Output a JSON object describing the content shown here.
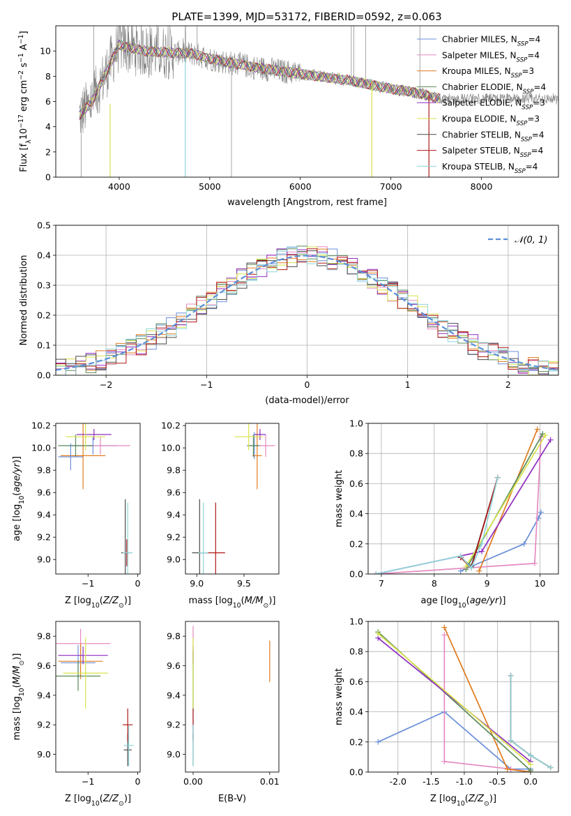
{
  "title": "PLATE=1399, MJD=53172, FIBERID=0592, z=0.063",
  "colors": {
    "Chabrier_MILES": "#6a8fd8",
    "Salpeter_MILES": "#e58ac0",
    "Kroupa_MILES": "#e07b1e",
    "Chabrier_ELODIE": "#5a8a5a",
    "Salpeter_ELODIE": "#8e2dc0",
    "Kroupa_ELODIE": "#d8e34a",
    "Chabrier_STELIB": "#4a4a4a",
    "Salpeter_STELIB": "#b01818",
    "Kroupa_STELIB": "#8fd5d8",
    "data": "#808080",
    "grid": "#b0b0b0"
  },
  "chart_data": [
    {
      "id": "spectrum",
      "type": "line",
      "xlabel": "wavelength [Angstrom, rest frame]",
      "ylabel": "Flux [f_λ 10^-17 erg cm^-2 s^-1 A^-1]",
      "xlim": [
        3300,
        8850
      ],
      "ylim": [
        0,
        12
      ],
      "xticks": [
        4000,
        5000,
        6000,
        7000,
        8000
      ],
      "yticks": [
        0,
        2,
        4,
        6,
        8,
        10
      ],
      "grid": false,
      "legend_position": "top-right",
      "model_continuum": {
        "x": [
          3550,
          3700,
          3850,
          4000,
          4100,
          4300,
          4500,
          4800,
          5000,
          5200,
          5500,
          5800,
          6000,
          6200,
          6500,
          6800,
          7000,
          7200,
          7400,
          7550
        ],
        "y": [
          4.8,
          6.0,
          8.2,
          10.5,
          10.3,
          10.0,
          9.9,
          9.8,
          9.4,
          9.1,
          8.7,
          8.4,
          8.2,
          8.0,
          7.7,
          7.3,
          7.0,
          6.8,
          6.5,
          6.2
        ]
      },
      "series": [
        {
          "name": "Chabrier MILES",
          "nssp": "N_SSP=4",
          "key": "Chabrier_MILES"
        },
        {
          "name": "Salpeter MILES",
          "nssp": "N_SSP=4",
          "key": "Salpeter_MILES"
        },
        {
          "name": "Kroupa MILES",
          "nssp": "N_SSP=3",
          "key": "Kroupa_MILES"
        },
        {
          "name": "Chabrier ELODIE",
          "nssp": "N_SSP=4",
          "key": "Chabrier_ELODIE"
        },
        {
          "name": "Salpeter ELODIE",
          "nssp": "N_SSP=3",
          "key": "Salpeter_ELODIE"
        },
        {
          "name": "Kroupa ELODIE",
          "nssp": "N_SSP=3",
          "key": "Kroupa_ELODIE"
        },
        {
          "name": "Chabrier STELIB",
          "nssp": "N_SSP=4",
          "key": "Chabrier_STELIB"
        },
        {
          "name": "Salpeter STELIB",
          "nssp": "N_SSP=4",
          "key": "Salpeter_STELIB"
        },
        {
          "name": "Kroupa STELIB",
          "nssp": "N_SSP=4",
          "key": "Kroupa_STELIB"
        }
      ],
      "dropouts": [
        {
          "key": "Kroupa_ELODIE",
          "x": 3900,
          "ystart": 5.8
        },
        {
          "key": "Kroupa_STELIB",
          "x": 4730,
          "ystart": 9.6
        },
        {
          "key": "Kroupa_ELODIE",
          "x": 6790,
          "ystart": 7.6
        },
        {
          "key": "Salpeter_STELIB",
          "x": 7420,
          "ystart": 6.5
        }
      ]
    },
    {
      "id": "residuals",
      "type": "histogram",
      "xlabel": "(data-model)/error",
      "ylabel": "Normed distribution",
      "xlim": [
        -2.5,
        2.5
      ],
      "ylim": [
        0,
        0.5
      ],
      "xticks": [
        -2,
        -1,
        0,
        1,
        2
      ],
      "yticks": [
        0.0,
        0.1,
        0.2,
        0.3,
        0.4,
        0.5
      ],
      "grid": true,
      "bin_width": 0.1,
      "reference": {
        "name": "𝒩(0, 1)",
        "mean": 0,
        "sigma": 1,
        "style": "dashed",
        "color": "#5b8fd8"
      },
      "legend_position": "top-right"
    },
    {
      "id": "age_vs_Z",
      "type": "scatter",
      "xlabel": "Z [log10(Z/Z_sun)]",
      "ylabel": "age [log10(age/yr)]",
      "xlim": [
        -1.65,
        0.05
      ],
      "ylim": [
        8.87,
        10.22
      ],
      "xticks": [
        -1,
        0
      ],
      "yticks": [
        9.0,
        9.2,
        9.4,
        9.6,
        9.8,
        10.0,
        10.2
      ],
      "points": [
        {
          "key": "Chabrier_MILES",
          "x": -0.9,
          "y": 10.02,
          "xerr": 0.5,
          "yerr": 0.08
        },
        {
          "key": "Salpeter_MILES",
          "x": -0.75,
          "y": 10.02,
          "xerr": 0.6,
          "yerr": 0.08
        },
        {
          "key": "Kroupa_MILES",
          "x": -1.1,
          "y": 9.93,
          "xerr": 0.45,
          "yerr": 0.3
        },
        {
          "key": "Chabrier_ELODIE",
          "x": -1.25,
          "y": 10.02,
          "xerr": 0.35,
          "yerr": 0.1
        },
        {
          "key": "Salpeter_ELODIE",
          "x": -0.88,
          "y": 10.12,
          "xerr": 0.35,
          "yerr": 0.05
        },
        {
          "key": "Kroupa_ELODIE",
          "x": -1.05,
          "y": 10.1,
          "xerr": 0.4,
          "yerr": 0.12
        },
        {
          "key": "Chabrier_STELIB",
          "x": -0.25,
          "y": 9.06,
          "xerr": 0.08,
          "yerr": 0.48
        },
        {
          "key": "Salpeter_STELIB",
          "x": -0.22,
          "y": 9.06,
          "xerr": 0.06,
          "yerr": 0.12
        },
        {
          "key": "Kroupa_STELIB",
          "x": -0.2,
          "y": 9.06,
          "xerr": 0.1,
          "yerr": 0.45
        },
        {
          "key": "Chabrier_MILES",
          "x": -1.35,
          "y": 9.92,
          "xerr": 0.25,
          "yerr": 0.12
        }
      ]
    },
    {
      "id": "age_vs_mass",
      "type": "scatter",
      "xlabel": "mass [log10(M/M_sun)]",
      "ylabel": "",
      "xlim": [
        8.88,
        9.87
      ],
      "ylim": [
        8.87,
        10.22
      ],
      "xticks": [
        9.0,
        9.5
      ],
      "yticks": [
        9.0,
        9.2,
        9.4,
        9.6,
        9.8,
        10.0,
        10.2
      ],
      "points": [
        {
          "key": "Chabrier_MILES",
          "x": 9.61,
          "y": 10.02,
          "xerr": 0.08,
          "yerr": 0.12
        },
        {
          "key": "Salpeter_MILES",
          "x": 9.73,
          "y": 10.02,
          "xerr": 0.1,
          "yerr": 0.1
        },
        {
          "key": "Kroupa_MILES",
          "x": 9.64,
          "y": 9.93,
          "xerr": 0.05,
          "yerr": 0.3
        },
        {
          "key": "Chabrier_ELODIE",
          "x": 9.6,
          "y": 10.02,
          "xerr": 0.06,
          "yerr": 0.1
        },
        {
          "key": "Salpeter_ELODIE",
          "x": 9.67,
          "y": 10.12,
          "xerr": 0.06,
          "yerr": 0.05
        },
        {
          "key": "Kroupa_ELODIE",
          "x": 9.55,
          "y": 10.1,
          "xerr": 0.15,
          "yerr": 0.12
        },
        {
          "key": "Chabrier_STELIB",
          "x": 9.03,
          "y": 9.06,
          "xerr": 0.08,
          "yerr": 0.48
        },
        {
          "key": "Salpeter_STELIB",
          "x": 9.2,
          "y": 9.06,
          "xerr": 0.1,
          "yerr": 0.45
        },
        {
          "key": "Kroupa_STELIB",
          "x": 9.07,
          "y": 9.06,
          "xerr": 0.05,
          "yerr": 0.45
        }
      ]
    },
    {
      "id": "weight_vs_age",
      "type": "line",
      "xlabel": "age [log10(age/yr)]",
      "ylabel": "mass weight",
      "xlim": [
        6.75,
        10.35
      ],
      "ylim": [
        0,
        1.0
      ],
      "xticks": [
        7,
        8,
        9,
        10
      ],
      "yticks": [
        0.0,
        0.2,
        0.4,
        0.6,
        0.8,
        1.0
      ],
      "grid": true,
      "series": [
        {
          "key": "Chabrier_MILES",
          "x": [
            8.5,
            9.7,
            9.97,
            10.02
          ],
          "y": [
            0.02,
            0.2,
            0.37,
            0.41
          ]
        },
        {
          "key": "Salpeter_MILES",
          "x": [
            6.9,
            9.9,
            10.02
          ],
          "y": [
            0.0,
            0.07,
            0.91
          ]
        },
        {
          "key": "Kroupa_MILES",
          "x": [
            8.85,
            9.95
          ],
          "y": [
            0.02,
            0.96
          ]
        },
        {
          "key": "Chabrier_ELODIE",
          "x": [
            8.6,
            10.05
          ],
          "y": [
            0.03,
            0.93
          ]
        },
        {
          "key": "Salpeter_ELODIE",
          "x": [
            6.9,
            8.9,
            10.2
          ],
          "y": [
            0.0,
            0.15,
            0.89
          ]
        },
        {
          "key": "Kroupa_ELODIE",
          "x": [
            8.6,
            10.1
          ],
          "y": [
            0.05,
            0.92
          ]
        },
        {
          "key": "Chabrier_STELIB",
          "x": [
            8.5,
            8.7,
            9.2
          ],
          "y": [
            0.11,
            0.05,
            0.64
          ]
        },
        {
          "key": "Salpeter_STELIB",
          "x": [
            8.5,
            8.7,
            9.2
          ],
          "y": [
            0.11,
            0.04,
            0.64
          ]
        },
        {
          "key": "Kroupa_STELIB",
          "x": [
            6.9,
            8.5,
            8.7,
            8.9,
            9.2
          ],
          "y": [
            0.0,
            0.12,
            0.04,
            0.2,
            0.64
          ]
        }
      ]
    },
    {
      "id": "mass_vs_Z",
      "type": "scatter",
      "xlabel": "Z [log10(Z/Z_sun)]",
      "ylabel": "mass [log10(M/M_sun)]",
      "xlim": [
        -1.65,
        0.05
      ],
      "ylim": [
        8.88,
        9.9
      ],
      "xticks": [
        -1,
        0
      ],
      "yticks": [
        9.0,
        9.2,
        9.4,
        9.6,
        9.8
      ],
      "points": [
        {
          "key": "Chabrier_MILES",
          "x": -1.2,
          "y": 9.62,
          "xerr": 0.35,
          "yerr": 0.12
        },
        {
          "key": "Salpeter_MILES",
          "x": -1.15,
          "y": 9.75,
          "xerr": 0.6,
          "yerr": 0.1
        },
        {
          "key": "Kroupa_MILES",
          "x": -1.15,
          "y": 9.63,
          "xerr": 0.45,
          "yerr": 0.12
        },
        {
          "key": "Chabrier_ELODIE",
          "x": -1.2,
          "y": 9.53,
          "xerr": 0.45,
          "yerr": 0.1
        },
        {
          "key": "Salpeter_ELODIE",
          "x": -1.1,
          "y": 9.67,
          "xerr": 0.5,
          "yerr": 0.06
        },
        {
          "key": "Kroupa_ELODIE",
          "x": -1.05,
          "y": 9.55,
          "xerr": 0.45,
          "yerr": 0.24
        },
        {
          "key": "Chabrier_STELIB",
          "x": -0.2,
          "y": 9.03,
          "xerr": 0.08,
          "yerr": 0.11
        },
        {
          "key": "Salpeter_STELIB",
          "x": -0.2,
          "y": 9.2,
          "xerr": 0.1,
          "yerr": 0.11
        },
        {
          "key": "Kroupa_STELIB",
          "x": -0.18,
          "y": 9.06,
          "xerr": 0.1,
          "yerr": 0.14
        }
      ]
    },
    {
      "id": "mass_vs_ebv",
      "type": "scatter",
      "xlabel": "E(B-V)",
      "ylabel": "",
      "xlim": [
        -0.001,
        0.0112
      ],
      "ylim": [
        8.88,
        9.9
      ],
      "xticks": [
        0.0,
        0.01
      ],
      "xtick_labels": [
        "0.00",
        "0.01"
      ],
      "yticks": [
        9.0,
        9.2,
        9.4,
        9.6,
        9.8
      ],
      "points": [
        {
          "key": "Chabrier_MILES",
          "x": 0.0,
          "y": 9.4,
          "xerr": 0,
          "yerr": 0.3
        },
        {
          "key": "Salpeter_MILES",
          "x": 0.0,
          "y": 9.75,
          "xerr": 0,
          "yerr": 0.12
        },
        {
          "key": "Kroupa_MILES",
          "x": 0.01,
          "y": 9.63,
          "xerr": 0,
          "yerr": 0.14
        },
        {
          "key": "Chabrier_ELODIE",
          "x": 0.0,
          "y": 9.5,
          "xerr": 0,
          "yerr": 0.2
        },
        {
          "key": "Salpeter_ELODIE",
          "x": 0.0,
          "y": 9.67,
          "xerr": 0,
          "yerr": 0.06
        },
        {
          "key": "Kroupa_ELODIE",
          "x": 0.0,
          "y": 9.55,
          "xerr": 0,
          "yerr": 0.24
        },
        {
          "key": "Chabrier_STELIB",
          "x": 0.0,
          "y": 9.03,
          "xerr": 0,
          "yerr": 0.11
        },
        {
          "key": "Salpeter_STELIB",
          "x": 0.0,
          "y": 9.2,
          "xerr": 0,
          "yerr": 0.11
        },
        {
          "key": "Kroupa_STELIB",
          "x": 0.0,
          "y": 9.06,
          "xerr": 0,
          "yerr": 0.14
        }
      ]
    },
    {
      "id": "weight_vs_Z",
      "type": "line",
      "xlabel": "Z [log10(Z/Z_sun)]",
      "ylabel": "mass weight",
      "xlim": [
        -2.45,
        0.42
      ],
      "ylim": [
        0,
        1.0
      ],
      "xticks": [
        -2.0,
        -1.5,
        -1.0,
        -0.5,
        0.0
      ],
      "yticks": [
        0.0,
        0.2,
        0.4,
        0.6,
        0.8,
        1.0
      ],
      "grid": true,
      "series": [
        {
          "key": "Chabrier_MILES",
          "x": [
            -2.3,
            -1.3,
            -0.3,
            0.0
          ],
          "y": [
            0.2,
            0.4,
            0.02,
            0.02
          ]
        },
        {
          "key": "Salpeter_MILES",
          "x": [
            -1.3,
            -1.3,
            -0.3,
            0.0
          ],
          "y": [
            0.91,
            0.07,
            0.02,
            0.0
          ]
        },
        {
          "key": "Kroupa_MILES",
          "x": [
            -1.3,
            -0.35,
            0.0
          ],
          "y": [
            0.96,
            0.02,
            0.0
          ]
        },
        {
          "key": "Chabrier_ELODIE",
          "x": [
            -2.3,
            0.0
          ],
          "y": [
            0.93,
            0.01
          ]
        },
        {
          "key": "Salpeter_ELODIE",
          "x": [
            -2.3,
            0.0
          ],
          "y": [
            0.89,
            0.07
          ]
        },
        {
          "key": "Kroupa_ELODIE",
          "x": [
            -2.3,
            0.0
          ],
          "y": [
            0.92,
            0.05
          ]
        },
        {
          "key": "Chabrier_STELIB",
          "x": [
            -0.3,
            -0.3,
            0.0,
            0.3
          ],
          "y": [
            0.64,
            0.21,
            0.11,
            0.03
          ]
        },
        {
          "key": "Salpeter_STELIB",
          "x": [
            -0.3,
            -0.3,
            0.0,
            0.3
          ],
          "y": [
            0.64,
            0.21,
            0.11,
            0.03
          ]
        },
        {
          "key": "Kroupa_STELIB",
          "x": [
            -0.3,
            -0.3,
            0.0,
            0.3
          ],
          "y": [
            0.64,
            0.21,
            0.11,
            0.03
          ]
        }
      ]
    }
  ]
}
